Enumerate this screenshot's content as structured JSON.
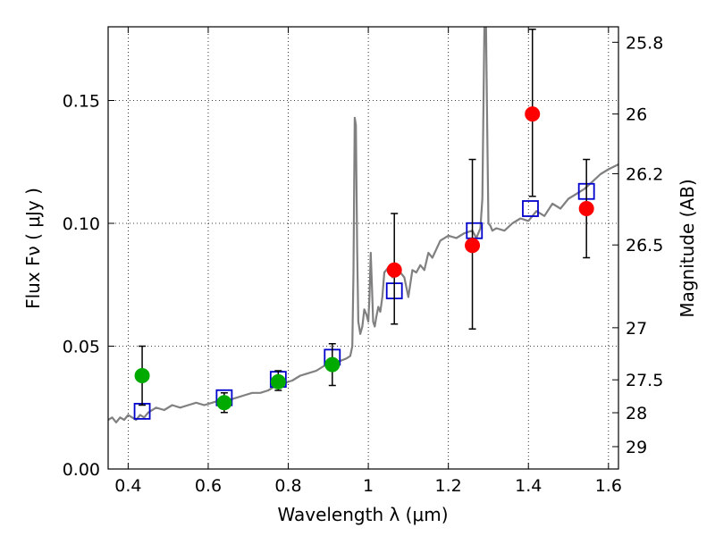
{
  "chart_data": {
    "type": "scatter",
    "title": "",
    "xlabel": "Wavelength  λ (μm)",
    "ylabel": "Flux  Fν  ( μJy )",
    "ylabel_right": "Magnitude (AB)",
    "xlim": [
      0.35,
      1.625
    ],
    "ylim": [
      0.0,
      0.18
    ],
    "grid": true,
    "grid_style": "dotted",
    "x_ticks": [
      {
        "value": 0.4,
        "label": "0.4"
      },
      {
        "value": 0.6,
        "label": "0.6"
      },
      {
        "value": 0.8,
        "label": "0.8"
      },
      {
        "value": 1.0,
        "label": "1"
      },
      {
        "value": 1.2,
        "label": "1.2"
      },
      {
        "value": 1.4,
        "label": "1.4"
      },
      {
        "value": 1.6,
        "label": "1.6"
      }
    ],
    "y_ticks": [
      {
        "value": 0.0,
        "label": "0.00"
      },
      {
        "value": 0.05,
        "label": "0.05"
      },
      {
        "value": 0.1,
        "label": "0.10"
      },
      {
        "value": 0.15,
        "label": "0.15"
      }
    ],
    "y_right_ticks": [
      {
        "flux": 0.1737,
        "label": "25.8"
      },
      {
        "flux": 0.1445,
        "label": "26"
      },
      {
        "flux": 0.1202,
        "label": "26.2"
      },
      {
        "flux": 0.0912,
        "label": "26.5"
      },
      {
        "flux": 0.0575,
        "label": "27"
      },
      {
        "flux": 0.0363,
        "label": "27.5"
      },
      {
        "flux": 0.0229,
        "label": "28"
      },
      {
        "flux": 0.0091,
        "label": "29"
      }
    ],
    "series": [
      {
        "kind": "line",
        "color": "#808080",
        "x": [
          0.35,
          0.36,
          0.37,
          0.38,
          0.39,
          0.4,
          0.41,
          0.42,
          0.43,
          0.44,
          0.45,
          0.47,
          0.49,
          0.51,
          0.53,
          0.55,
          0.57,
          0.59,
          0.61,
          0.63,
          0.65,
          0.67,
          0.69,
          0.71,
          0.73,
          0.75,
          0.77,
          0.79,
          0.81,
          0.83,
          0.85,
          0.87,
          0.89,
          0.91,
          0.93,
          0.945,
          0.955,
          0.96,
          0.963,
          0.966,
          0.969,
          0.972,
          0.975,
          0.98,
          0.985,
          0.99,
          0.995,
          1.0,
          1.003,
          1.006,
          1.009,
          1.012,
          1.016,
          1.02,
          1.025,
          1.03,
          1.035,
          1.04,
          1.05,
          1.06,
          1.07,
          1.08,
          1.09,
          1.1,
          1.11,
          1.12,
          1.13,
          1.14,
          1.15,
          1.16,
          1.18,
          1.2,
          1.22,
          1.24,
          1.26,
          1.27,
          1.28,
          1.285,
          1.29,
          1.292,
          1.294,
          1.297,
          1.3,
          1.305,
          1.31,
          1.32,
          1.34,
          1.36,
          1.38,
          1.4,
          1.42,
          1.44,
          1.46,
          1.48,
          1.5,
          1.52,
          1.54,
          1.56,
          1.58,
          1.6,
          1.625
        ],
        "y": [
          0.02,
          0.021,
          0.019,
          0.021,
          0.02,
          0.022,
          0.021,
          0.02,
          0.022,
          0.021,
          0.023,
          0.025,
          0.024,
          0.026,
          0.025,
          0.026,
          0.027,
          0.026,
          0.027,
          0.028,
          0.028,
          0.029,
          0.03,
          0.031,
          0.031,
          0.032,
          0.034,
          0.035,
          0.036,
          0.038,
          0.039,
          0.04,
          0.042,
          0.043,
          0.044,
          0.045,
          0.046,
          0.05,
          0.08,
          0.143,
          0.14,
          0.09,
          0.06,
          0.055,
          0.058,
          0.065,
          0.063,
          0.06,
          0.07,
          0.088,
          0.075,
          0.06,
          0.058,
          0.062,
          0.066,
          0.064,
          0.07,
          0.08,
          0.082,
          0.078,
          0.082,
          0.08,
          0.078,
          0.07,
          0.081,
          0.08,
          0.083,
          0.081,
          0.088,
          0.086,
          0.093,
          0.095,
          0.094,
          0.096,
          0.097,
          0.094,
          0.098,
          0.11,
          0.18,
          0.18,
          0.18,
          0.14,
          0.1,
          0.099,
          0.097,
          0.098,
          0.097,
          0.1,
          0.102,
          0.101,
          0.105,
          0.103,
          0.108,
          0.106,
          0.11,
          0.112,
          0.114,
          0.117,
          0.12,
          0.122,
          0.124
        ]
      },
      {
        "kind": "points",
        "marker": "circle",
        "color": "#00aa00",
        "points": [
          {
            "x": 0.435,
            "y": 0.038,
            "err": [
              0.026,
              0.05
            ]
          },
          {
            "x": 0.64,
            "y": 0.027,
            "err": [
              0.023,
              0.031
            ]
          },
          {
            "x": 0.775,
            "y": 0.0355,
            "err": [
              0.032,
              0.04
            ]
          },
          {
            "x": 0.91,
            "y": 0.0425,
            "err": [
              0.034,
              0.051
            ]
          }
        ]
      },
      {
        "kind": "points",
        "marker": "circle",
        "color": "#ff0000",
        "points": [
          {
            "x": 1.065,
            "y": 0.081,
            "err": [
              0.059,
              0.104
            ]
          },
          {
            "x": 1.26,
            "y": 0.091,
            "err": [
              0.057,
              0.126
            ]
          },
          {
            "x": 1.41,
            "y": 0.1445,
            "err": [
              0.111,
              0.179
            ]
          },
          {
            "x": 1.545,
            "y": 0.106,
            "err": [
              0.086,
              0.126
            ]
          }
        ]
      },
      {
        "kind": "points",
        "marker": "square",
        "color": "#0000cc",
        "points": [
          {
            "x": 0.435,
            "y": 0.0235
          },
          {
            "x": 0.64,
            "y": 0.029
          },
          {
            "x": 0.775,
            "y": 0.0365
          },
          {
            "x": 0.91,
            "y": 0.0455
          },
          {
            "x": 1.065,
            "y": 0.0725
          },
          {
            "x": 1.265,
            "y": 0.097
          },
          {
            "x": 1.405,
            "y": 0.106
          },
          {
            "x": 1.545,
            "y": 0.113
          }
        ]
      }
    ]
  }
}
